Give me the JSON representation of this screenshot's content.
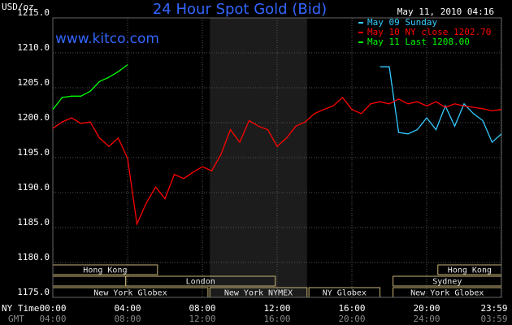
{
  "chart_data": {
    "type": "line",
    "title": "24 Hour Spot Gold (Bid)",
    "source": "www.kitco.com",
    "timestamp": "May 11, 2010 04:16",
    "y_label": "USD/oz",
    "x_label": "NY Time",
    "x2_label": "GMT",
    "background": "#000000",
    "grid": true,
    "x": [
      0,
      0.5,
      1,
      1.5,
      2,
      2.5,
      3,
      3.5,
      4,
      4.5,
      5,
      5.5,
      6,
      6.5,
      7,
      7.5,
      8,
      8.5,
      9,
      9.5,
      10,
      10.5,
      11,
      11.5,
      12,
      12.5,
      13,
      13.5,
      14,
      14.5,
      15,
      15.5,
      16,
      16.5,
      17,
      17.5,
      18,
      18.5,
      19,
      19.5,
      20,
      20.5,
      21,
      21.5,
      22,
      22.5,
      23,
      23.5,
      24
    ],
    "series": [
      {
        "name": "May 09 Sunday",
        "color": "#33ccff",
        "values": [
          null,
          null,
          null,
          null,
          null,
          null,
          null,
          null,
          null,
          null,
          null,
          null,
          null,
          null,
          null,
          null,
          null,
          null,
          null,
          null,
          null,
          null,
          null,
          null,
          null,
          null,
          null,
          null,
          null,
          null,
          null,
          null,
          null,
          null,
          null,
          1208.0,
          1208.0,
          1198.6,
          1198.4,
          1199.0,
          1200.7,
          1199.0,
          1202.4,
          1199.5,
          1202.7,
          1201.3,
          1200.3,
          1197.2,
          1198.4
        ]
      },
      {
        "name": "May 10 NY close 1202.70",
        "color": "#ff0000",
        "values": [
          1199.2,
          1200.1,
          1200.7,
          1199.9,
          1200.1,
          1197.8,
          1196.6,
          1197.8,
          1194.9,
          1185.5,
          1188.5,
          1190.8,
          1189.1,
          1192.6,
          1192.0,
          1192.9,
          1193.7,
          1193.1,
          1195.5,
          1199.0,
          1197.2,
          1200.3,
          1199.5,
          1199.0,
          1196.6,
          1197.8,
          1199.5,
          1200.1,
          1201.3,
          1201.9,
          1202.4,
          1203.6,
          1201.9,
          1201.3,
          1202.7,
          1203.0,
          1202.7,
          1203.4,
          1202.7,
          1203.0,
          1202.4,
          1203.0,
          1202.2,
          1202.7,
          1202.4,
          1202.2,
          1202.0,
          1201.7,
          1201.9
        ]
      },
      {
        "name": "May 11 Last 1208.00",
        "color": "#00ff00",
        "values": [
          1201.9,
          1203.6,
          1203.8,
          1203.8,
          1204.5,
          1205.9,
          1206.5,
          1207.3,
          1208.3,
          null,
          null,
          null,
          null,
          null,
          null,
          null,
          null,
          null,
          null,
          null,
          null,
          null,
          null,
          null,
          null,
          null,
          null,
          null,
          null,
          null,
          null,
          null,
          null,
          null,
          null,
          null,
          null,
          null,
          null,
          null,
          null,
          null,
          null,
          null,
          null,
          null,
          null,
          null,
          null
        ]
      }
    ],
    "xlim": [
      0,
      24
    ],
    "xticks": [
      {
        "value": 0,
        "label": "00:00"
      },
      {
        "value": 4,
        "label": "04:00"
      },
      {
        "value": 8,
        "label": "08:00"
      },
      {
        "value": 12,
        "label": "12:00"
      },
      {
        "value": 16,
        "label": "16:00"
      },
      {
        "value": 20,
        "label": "20:00"
      },
      {
        "value": 23.98,
        "label": "23:59"
      }
    ],
    "x2ticks": [
      "04:00",
      "08:00",
      "12:00",
      "16:00",
      "20:00",
      "24:00",
      "03:59"
    ],
    "ylim": [
      1175,
      1215
    ],
    "yticks": [
      {
        "value": 1175,
        "label": "1175.0"
      },
      {
        "value": 1180,
        "label": "1180.0"
      },
      {
        "value": 1185,
        "label": "1185.0"
      },
      {
        "value": 1190,
        "label": "1190.0"
      },
      {
        "value": 1195,
        "label": "1195.0"
      },
      {
        "value": 1200,
        "label": "1200.0"
      },
      {
        "value": 1205,
        "label": "1205.0"
      },
      {
        "value": 1210,
        "label": "1210.0"
      },
      {
        "value": 1215,
        "label": "1215.0"
      }
    ],
    "shaded_range": [
      8.4,
      13.6
    ],
    "sessions": [
      {
        "label": "Hong Kong",
        "start": 0,
        "end": 5.6,
        "row": 0
      },
      {
        "label": "Hong Kong",
        "start": 20.6,
        "end": 24,
        "row": 0
      },
      {
        "start": 0,
        "end": 3.9,
        "row": 1
      },
      {
        "label": "London",
        "start": 3.9,
        "end": 11.9,
        "row": 1
      },
      {
        "label": "Sydney",
        "start": 18.2,
        "end": 24,
        "row": 1
      },
      {
        "label": "New York Globex",
        "start": 0,
        "end": 8.3,
        "row": 2
      },
      {
        "label": "New York NYMEX",
        "start": 8.4,
        "end": 13.6,
        "row": 2
      },
      {
        "label": "NY Globex",
        "start": 13.7,
        "end": 17.5,
        "row": 2
      },
      {
        "label": "New York Globex",
        "start": 18.2,
        "end": 24,
        "row": 2
      }
    ]
  }
}
